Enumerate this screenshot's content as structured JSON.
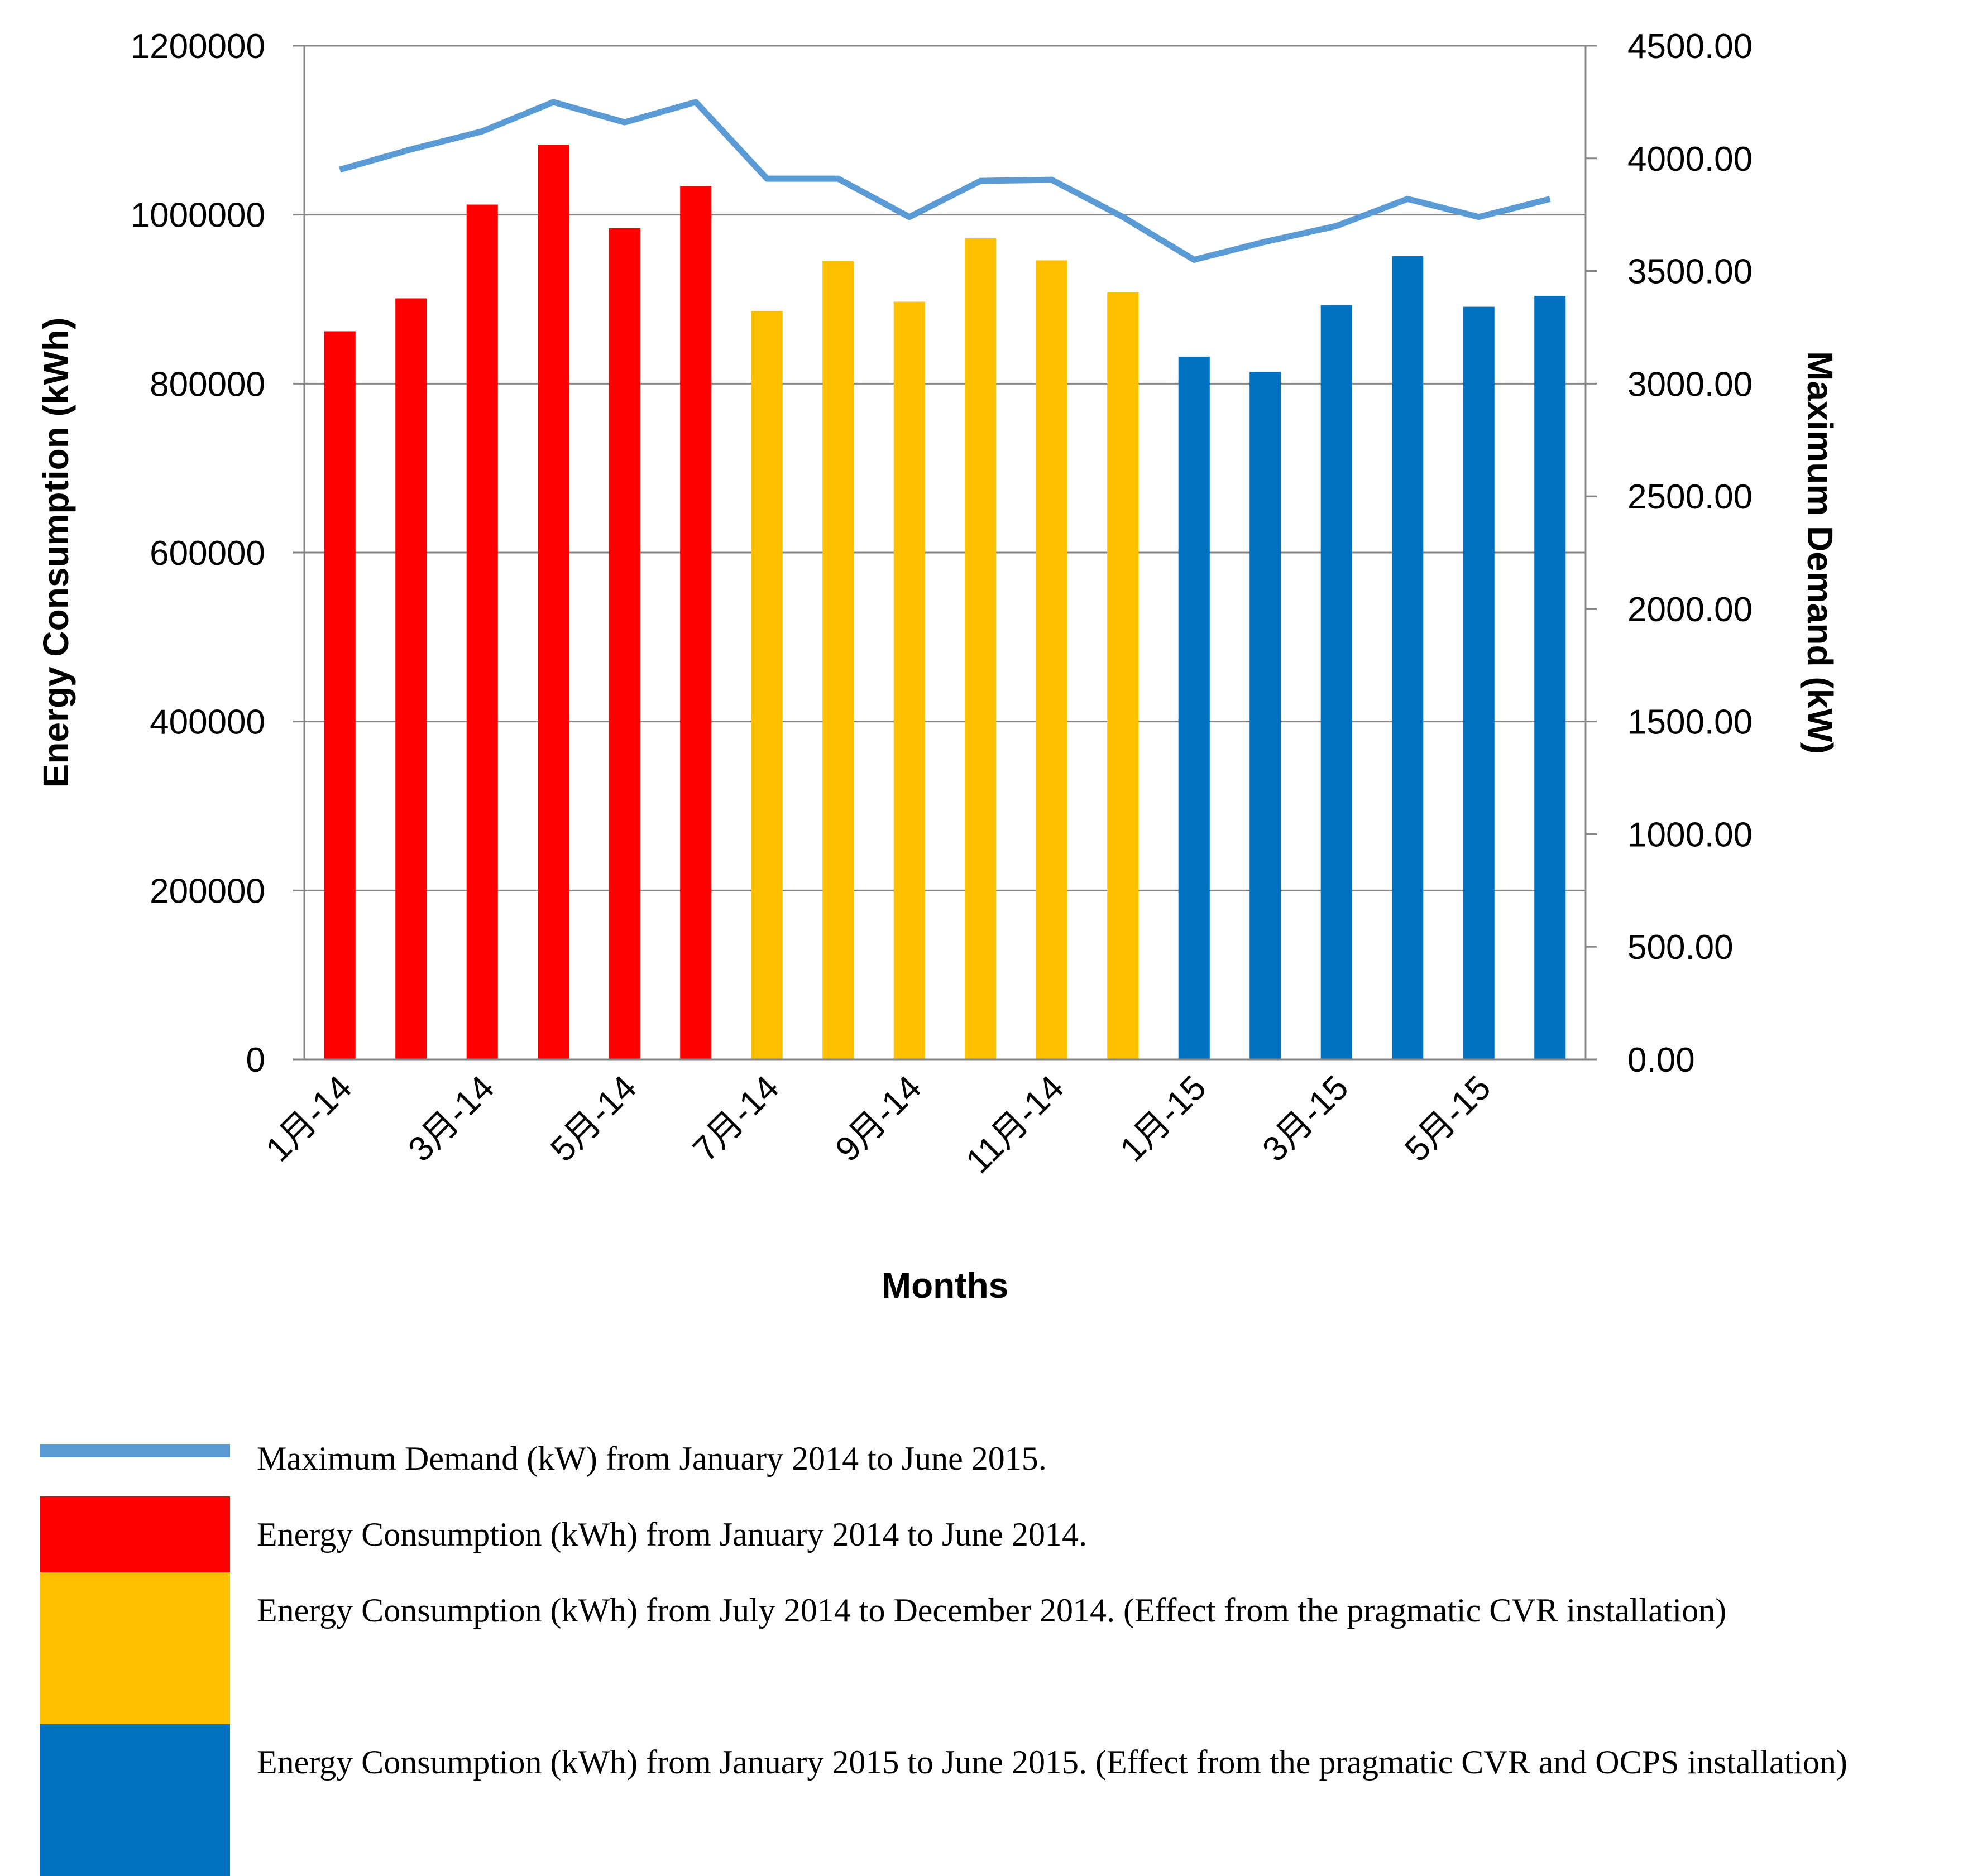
{
  "chart_data": {
    "type": "bar",
    "categories": [
      "1月-14",
      "2月-14",
      "3月-14",
      "4月-14",
      "5月-14",
      "6月-14",
      "7月-14",
      "8月-14",
      "9月-14",
      "10月-14",
      "11月-14",
      "12月-14",
      "1月-15",
      "2月-15",
      "3月-15",
      "4月-15",
      "5月-15",
      "6月-15"
    ],
    "tick_labels": [
      "1月-14",
      "3月-14",
      "5月-14",
      "7月-14",
      "9月-14",
      "11月-14",
      "1月-15",
      "3月-15",
      "5月-15"
    ],
    "series": [
      {
        "type": "bar",
        "axis": "left",
        "values": [
          862000,
          901000,
          1012000,
          1083000,
          984000,
          1034000,
          886000,
          945000,
          897000,
          972000,
          946000,
          908000,
          832000,
          814000,
          893000,
          951000,
          891000,
          904000
        ],
        "colors": [
          "#ff0000",
          "#ff0000",
          "#ff0000",
          "#ff0000",
          "#ff0000",
          "#ff0000",
          "#ffc000",
          "#ffc000",
          "#ffc000",
          "#ffc000",
          "#ffc000",
          "#ffc000",
          "#0070c0",
          "#0070c0",
          "#0070c0",
          "#0070c0",
          "#0070c0",
          "#0070c0"
        ]
      },
      {
        "type": "line",
        "axis": "right",
        "color": "#5b9bd5",
        "values": [
          3950,
          4040,
          4120,
          4250,
          4160,
          4250,
          3910,
          3910,
          3740,
          3900,
          3905,
          3740,
          3550,
          3630,
          3700,
          3820,
          3740,
          3820
        ]
      }
    ],
    "xlabel": "Months",
    "ylabel": "Energy Consumption (kWh)",
    "y2label": "Maximum Demand (kW)",
    "ylim": [
      0,
      1200000
    ],
    "y2lim": [
      0,
      4500
    ],
    "yticks": [
      "0",
      "200000",
      "400000",
      "600000",
      "800000",
      "1000000",
      "1200000"
    ],
    "y2ticks": [
      "0.00",
      "500.00",
      "1000.00",
      "1500.00",
      "2000.00",
      "2500.00",
      "3000.00",
      "3500.00",
      "4000.00",
      "4500.00"
    ],
    "grid": "major horizontal lines",
    "legend": {
      "position": "bottom",
      "entries": [
        {
          "label": "Maximum Demand (kW) from January 2014 to June 2015.",
          "color": "#5b9bd5",
          "kind": "line"
        },
        {
          "label": "Energy Consumption (kWh) from January 2014 to June 2014.",
          "color": "#ff0000",
          "kind": "box"
        },
        {
          "label": "Energy Consumption (kWh) from July 2014 to December 2014. (Effect from the pragmatic CVR installation)",
          "color": "#ffc000",
          "kind": "box"
        },
        {
          "label": "Energy Consumption (kWh) from January 2015 to June 2015. (Effect from the pragmatic CVR and OCPS installation)",
          "color": "#0070c0",
          "kind": "box"
        }
      ]
    }
  }
}
